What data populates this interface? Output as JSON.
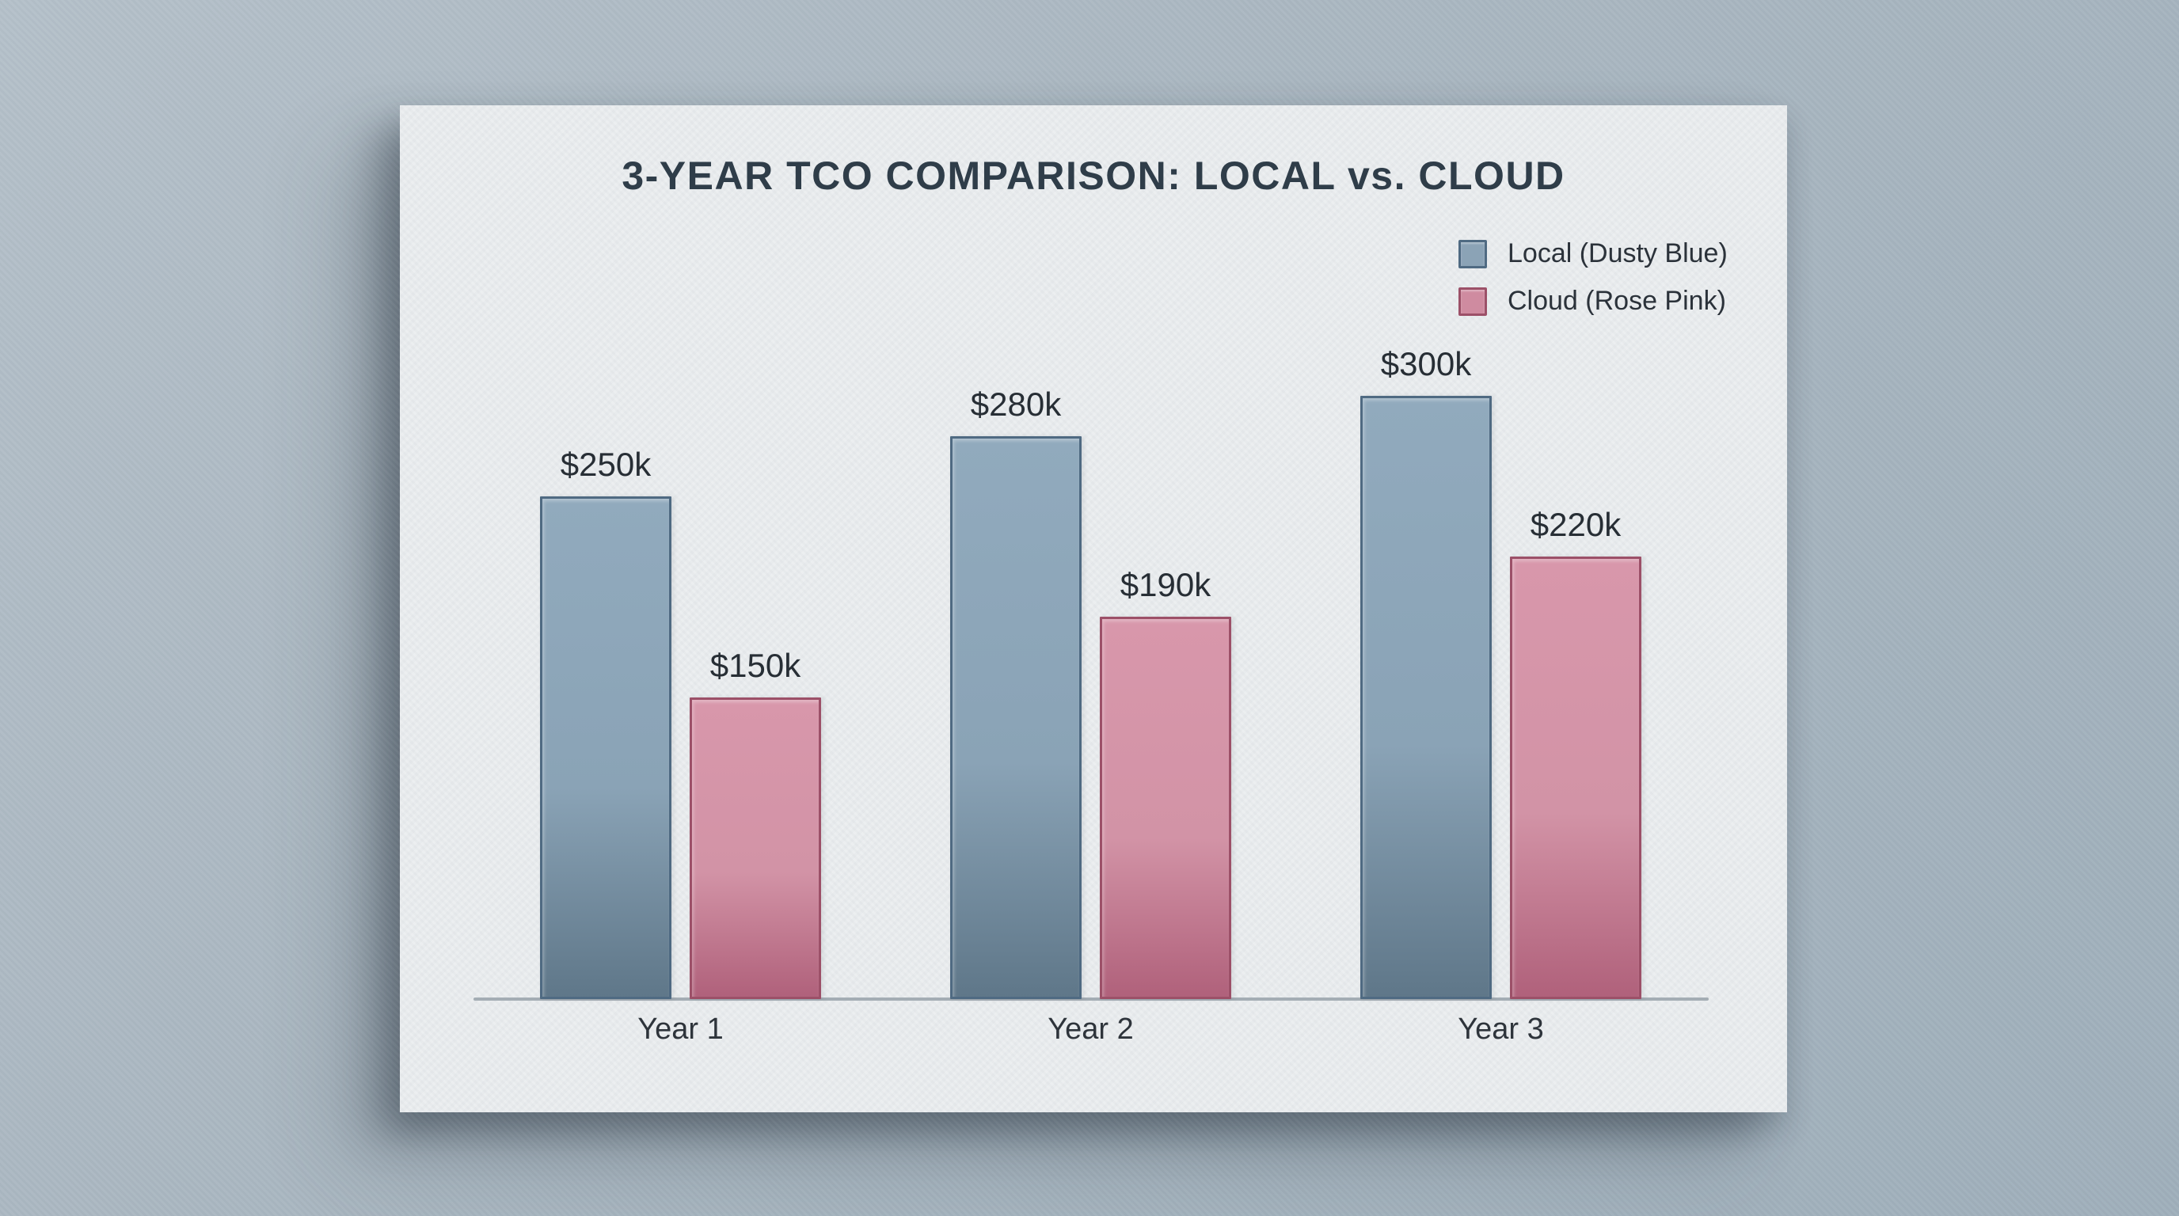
{
  "chart_data": {
    "type": "bar",
    "title": "3-YEAR TCO COMPARISON: LOCAL vs. CLOUD",
    "categories": [
      "Year 1",
      "Year 2",
      "Year 3"
    ],
    "series": [
      {
        "name": "Local (Dusty Blue)",
        "key": "local",
        "values": [
          250,
          280,
          300
        ],
        "labels": [
          "$250k",
          "$280k",
          "$300k"
        ],
        "fill_top": "#91aabd",
        "fill_mid": "#8aa3b6",
        "fill_bottom": "#5f7789",
        "border": "#4f6a82",
        "swatch": "#8ba3b6"
      },
      {
        "name": "Cloud (Rose Pink)",
        "key": "cloud",
        "values": [
          150,
          190,
          220
        ],
        "labels": [
          "$150k",
          "$190k",
          "$220k"
        ],
        "fill_top": "#d897ab",
        "fill_mid": "#d293a6",
        "fill_bottom": "#b0617b",
        "border": "#9c5068",
        "swatch": "#cf8ba0"
      }
    ],
    "ylim": [
      0,
      320
    ],
    "grid": false,
    "legend_position": "top-right",
    "axis_line_color": "#a4adb4"
  },
  "colors": {
    "wall": "#a9b6c0",
    "card": "#eaedef",
    "title_text": "#2f3d49",
    "value_label_text": "#272e35",
    "axis_label_text": "#2e343b",
    "legend_text": "#2b323a"
  }
}
